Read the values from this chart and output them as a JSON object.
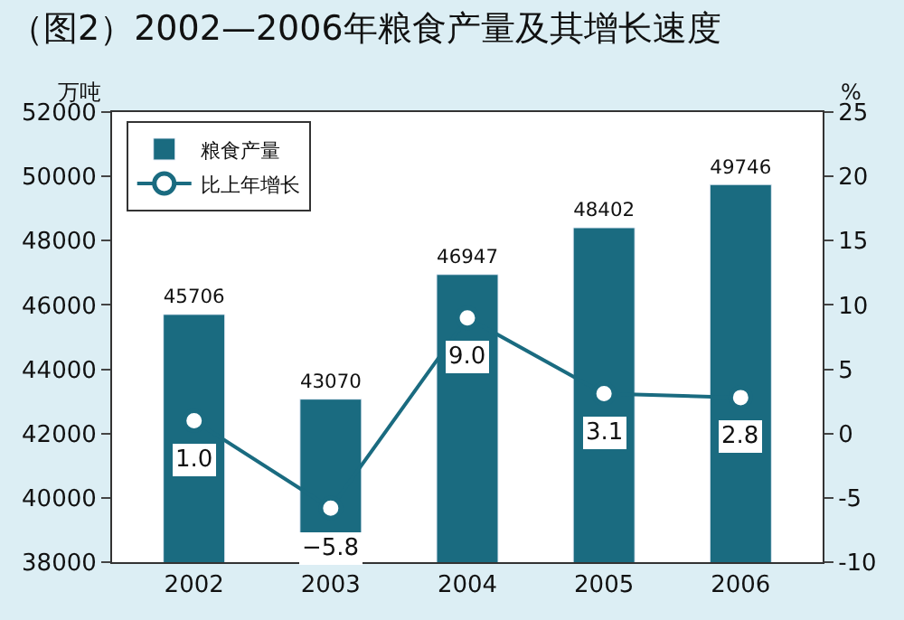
{
  "chart_data": {
    "type": "bar",
    "title": "（图2）2002—2006年粮食产量及其增长速度",
    "ylabel": "万吨",
    "y2label": "%",
    "categories": [
      "2002",
      "2003",
      "2004",
      "2005",
      "2006"
    ],
    "series": [
      {
        "name": "粮食产量",
        "color": "#1a6b80",
        "values": [
          45706,
          43070,
          46947,
          48402,
          49746
        ],
        "value_labels": [
          "45706",
          "43070",
          "46947",
          "48402",
          "49746"
        ]
      },
      {
        "name": "比上年增长",
        "type": "line",
        "axis": "y2",
        "color": "#1a6b80",
        "marker": "circle",
        "values": [
          1.0,
          -5.8,
          9.0,
          3.1,
          2.8
        ],
        "value_labels": [
          "1.0",
          "−5.8",
          "9.0",
          "3.1",
          "2.8"
        ]
      }
    ],
    "ylim": [
      38000,
      52000
    ],
    "yticks": [
      38000,
      40000,
      42000,
      44000,
      46000,
      48000,
      50000,
      52000
    ],
    "y2lim": [
      -10,
      25
    ],
    "y2ticks": [
      -10,
      -5,
      0,
      5,
      10,
      15,
      20,
      25
    ],
    "legend": "top left"
  }
}
